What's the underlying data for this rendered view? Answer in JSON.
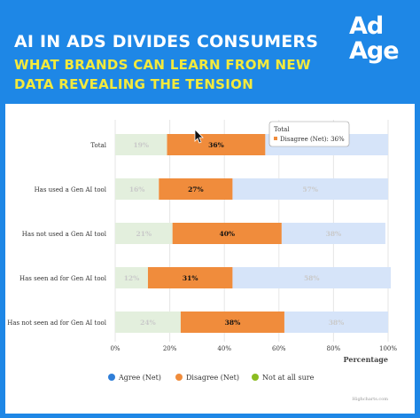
{
  "header": {
    "title": "AI IN ADS DIVIDES CONSUMERS",
    "subtitle_line1": "WHAT BRANDS CAN LEARN FROM NEW",
    "subtitle_line2": "DATA REVEALING THE TENSION",
    "logo_line1": "Ad",
    "logo_line2": "Age"
  },
  "colors": {
    "background": "#1e87e6",
    "agree": "#d6e4f9",
    "disagree": "#f08c3c",
    "not_sure": "#e3efdd",
    "title_yellow": "#f4ea3c"
  },
  "chart_data": {
    "type": "bar",
    "orientation": "horizontal",
    "stacked": true,
    "categories": [
      "Total",
      "Has used a Gen AI tool",
      "Has not used a Gen AI tool",
      "Has seen ad for Gen AI tool",
      "Has not seen ad for Gen AI tool"
    ],
    "series": [
      {
        "name": "Not at all sure",
        "values": [
          19,
          16,
          21,
          12,
          24
        ],
        "color": "#e3efdd"
      },
      {
        "name": "Disagree (Net)",
        "values": [
          36,
          27,
          40,
          31,
          38
        ],
        "color": "#f08c3c"
      },
      {
        "name": "Agree (Net)",
        "values": [
          45,
          57,
          38,
          58,
          38
        ],
        "color": "#d6e4f9"
      }
    ],
    "value_labels": {
      "Not at all sure": [
        "19%",
        "16%",
        "21%",
        "12%",
        "24%"
      ],
      "Disagree (Net)": [
        "36%",
        "27%",
        "40%",
        "31%",
        "38%"
      ],
      "Agree (Net)": [
        "",
        "57%",
        "38%",
        "58%",
        "38%"
      ]
    },
    "xlabel": "Percentage",
    "xlim": [
      0,
      100
    ],
    "x_ticks": [
      "0%",
      "20%",
      "40%",
      "60%",
      "80%",
      "100%"
    ],
    "legend": [
      "Agree (Net)",
      "Disagree (Net)",
      "Not at all sure"
    ],
    "legend_position": "bottom",
    "tooltip": {
      "title": "Total",
      "text": "Disagree (Net): 36%"
    },
    "credits": "Highcharts.com"
  }
}
